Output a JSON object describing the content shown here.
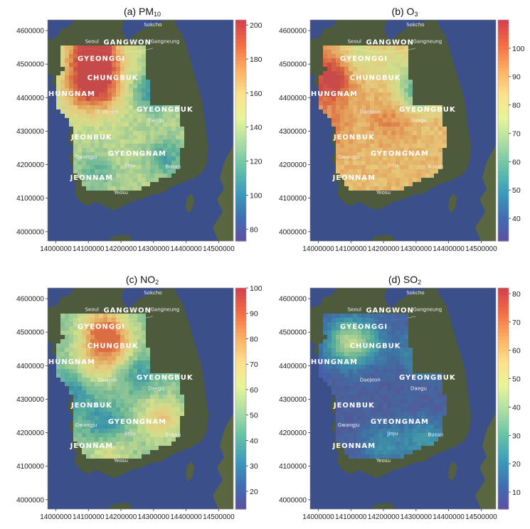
{
  "chart_data": [
    {
      "type": "heatmap",
      "title": "(a) PM10",
      "title_main": "(a) PM",
      "title_sub": "10",
      "colorbar": {
        "min": 73,
        "max": 203,
        "ticks": [
          80,
          100,
          120,
          140,
          160,
          180,
          200
        ]
      },
      "value_range": {
        "base": 138,
        "min": 95,
        "max": 200
      },
      "hotspots": [
        {
          "lon": 14100000,
          "lat": 4440000,
          "value": 195
        },
        {
          "lon": 14095000,
          "lat": 4520000,
          "value": 175
        },
        {
          "lon": 14160000,
          "lat": 4490000,
          "value": 165
        },
        {
          "lon": 14120000,
          "lat": 4555000,
          "value": 185
        },
        {
          "lon": 14160000,
          "lat": 4400000,
          "value": 160
        },
        {
          "lon": 14040000,
          "lat": 4375000,
          "value": 150
        }
      ],
      "coldspots": [
        {
          "lon": 14300000,
          "lat": 4420000,
          "value": 100
        },
        {
          "lon": 14340000,
          "lat": 4220000,
          "value": 110
        },
        {
          "lon": 14120000,
          "lat": 4180000,
          "value": 118
        }
      ]
    },
    {
      "type": "heatmap",
      "title": "(b) O3",
      "title_main": "(b) O",
      "title_sub": "3",
      "colorbar": {
        "min": 32,
        "max": 110,
        "ticks": [
          40,
          50,
          60,
          70,
          80,
          90,
          100
        ]
      },
      "value_range": {
        "base": 88,
        "min": 50,
        "max": 108
      },
      "hotspots": [
        {
          "lon": 14030000,
          "lat": 4440000,
          "value": 106
        },
        {
          "lon": 14060000,
          "lat": 4500000,
          "value": 102
        },
        {
          "lon": 14030000,
          "lat": 4300000,
          "value": 98
        },
        {
          "lon": 14220000,
          "lat": 4330000,
          "value": 96
        }
      ],
      "coldspots": [
        {
          "lon": 14310000,
          "lat": 4420000,
          "value": 55
        },
        {
          "lon": 14110000,
          "lat": 4520000,
          "value": 70
        },
        {
          "lon": 14240000,
          "lat": 4500000,
          "value": 78
        }
      ]
    },
    {
      "type": "heatmap",
      "title": "(c) NO2",
      "title_main": "(c) NO",
      "title_sub": "2",
      "colorbar": {
        "min": 13,
        "max": 100,
        "ticks": [
          20,
          30,
          40,
          50,
          60,
          70,
          80,
          90,
          100
        ]
      },
      "value_range": {
        "base": 48,
        "min": 22,
        "max": 90
      },
      "hotspots": [
        {
          "lon": 14140000,
          "lat": 4510000,
          "value": 82
        },
        {
          "lon": 14180000,
          "lat": 4460000,
          "value": 75
        },
        {
          "lon": 14110000,
          "lat": 4400000,
          "value": 68
        },
        {
          "lon": 14320000,
          "lat": 4240000,
          "value": 72
        },
        {
          "lon": 14160000,
          "lat": 4140000,
          "value": 65
        }
      ],
      "coldspots": [
        {
          "lon": 14060000,
          "lat": 4330000,
          "value": 30
        },
        {
          "lon": 14150000,
          "lat": 4220000,
          "value": 28
        },
        {
          "lon": 14260000,
          "lat": 4380000,
          "value": 35
        }
      ]
    },
    {
      "type": "heatmap",
      "title": "(d) SO2",
      "title_main": "(d) SO",
      "title_sub": "2",
      "colorbar": {
        "min": 4,
        "max": 82,
        "ticks": [
          10,
          20,
          30,
          40,
          50,
          60,
          70,
          80
        ]
      },
      "value_range": {
        "base": 9,
        "min": 4,
        "max": 45
      },
      "hotspots": [
        {
          "lon": 14095000,
          "lat": 4470000,
          "value": 42
        },
        {
          "lon": 14330000,
          "lat": 4440000,
          "value": 24
        },
        {
          "lon": 14330000,
          "lat": 4180000,
          "value": 22
        },
        {
          "lon": 14200000,
          "lat": 4160000,
          "value": 20
        },
        {
          "lon": 14170000,
          "lat": 4470000,
          "value": 16
        }
      ],
      "coldspots": []
    }
  ],
  "axes": {
    "x_ticks": [
      14000000,
      14100000,
      14200000,
      14300000,
      14400000,
      14500000
    ],
    "y_ticks": [
      4000000,
      4100000,
      4200000,
      4300000,
      4400000,
      4500000,
      4600000
    ],
    "xlim": [
      13975000,
      14545000
    ],
    "ylim": [
      3972000,
      4632000
    ]
  },
  "map_labels": {
    "provinces": [
      {
        "text": "GANGWON",
        "lon": 14220000,
        "lat": 4559000
      },
      {
        "text": "GYEONGGI",
        "lon": 14140000,
        "lat": 4510000
      },
      {
        "text": "CHUNGBUK",
        "lon": 14175000,
        "lat": 4453000
      },
      {
        "text": "CHUNGNAM",
        "lon": 14040000,
        "lat": 4405000
      },
      {
        "text": "GYEONGBUK",
        "lon": 14335000,
        "lat": 4358000
      },
      {
        "text": "JEONBUK",
        "lon": 14110000,
        "lat": 4275000
      },
      {
        "text": "GYEONGNAM",
        "lon": 14250000,
        "lat": 4227000
      },
      {
        "text": "JEONNAM",
        "lon": 14110000,
        "lat": 4155000
      }
    ],
    "cities": [
      {
        "text": "Sokcho",
        "lon": 14298000,
        "lat": 4613000
      },
      {
        "text": "Seoul",
        "lon": 14111000,
        "lat": 4563000
      },
      {
        "text": "Gangneung",
        "lon": 14335000,
        "lat": 4563000
      },
      {
        "text": "Daejeon",
        "lon": 14159000,
        "lat": 4353000
      },
      {
        "text": "Daegu",
        "lon": 14308000,
        "lat": 4327000
      },
      {
        "text": "Gwangju",
        "lon": 14093000,
        "lat": 4218000
      },
      {
        "text": "Jinju",
        "lon": 14228000,
        "lat": 4193000
      },
      {
        "text": "Busan",
        "lon": 14360000,
        "lat": 4189000
      },
      {
        "text": "Yeosu",
        "lon": 14200000,
        "lat": 4112000
      }
    ]
  },
  "colors": {
    "colorscale": [
      "#5e4fa2",
      "#3f6fb3",
      "#3a9dbd",
      "#66c2a5",
      "#abdda4",
      "#e6f598",
      "#fee08b",
      "#fdae61",
      "#f46d43",
      "#d53e4f"
    ],
    "sea": "#3b4f8a",
    "land": "#4e5a3c"
  }
}
